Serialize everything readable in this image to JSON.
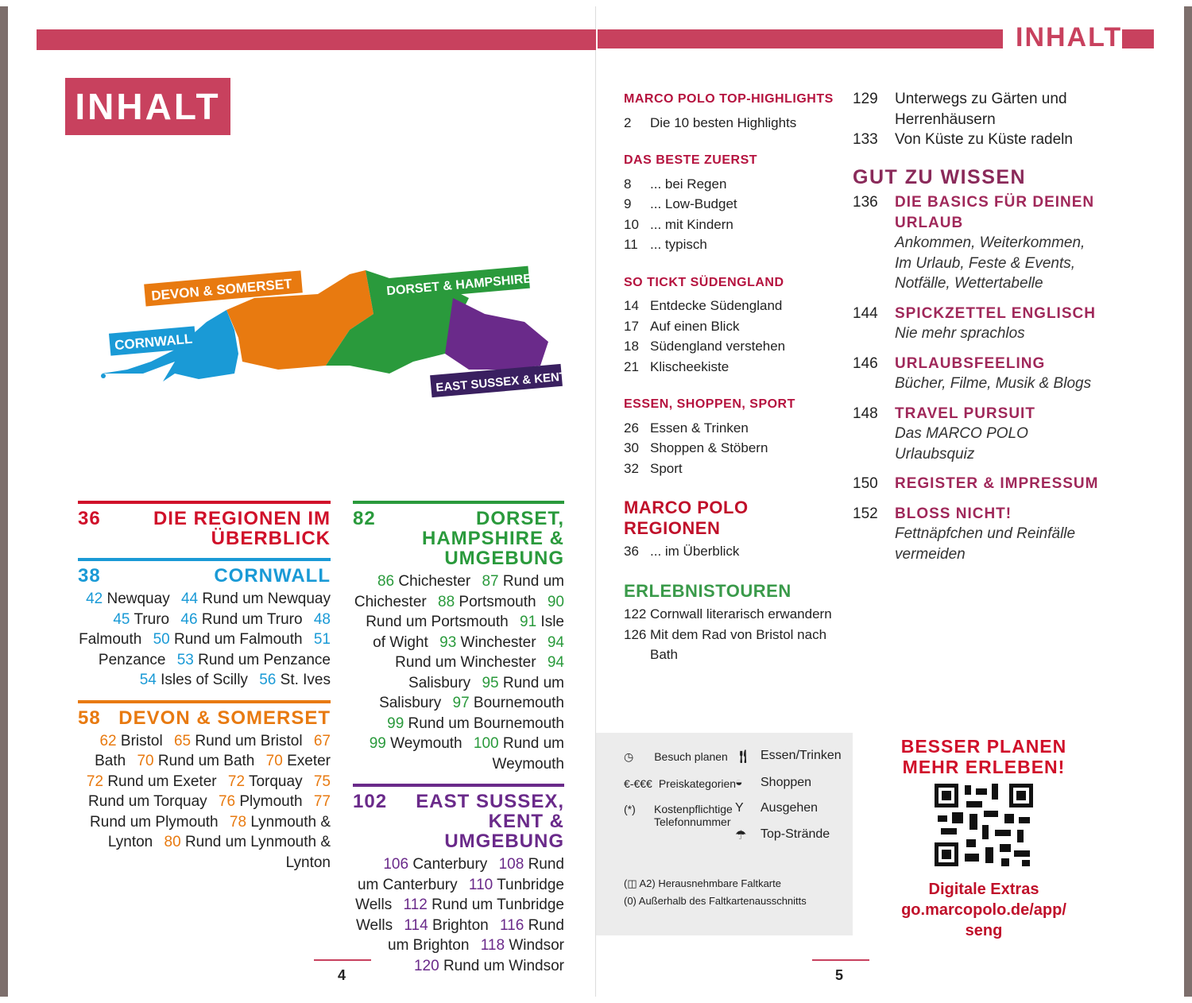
{
  "left_page": {
    "title": "INHALT",
    "map_labels": {
      "cornwall": "CORNWALL",
      "devon": "DEVON & SOMERSET",
      "dorset": "DORSET & HAMPSHIRE",
      "sussex": "EAST SUSSEX & KENT"
    },
    "regions": [
      {
        "num": "36",
        "title": "DIE REGIONEN IM ÜBERBLICK",
        "color": "#d0102a",
        "entries": []
      },
      {
        "num": "38",
        "title": "CORNWALL",
        "color": "#1a9ad6",
        "entries": [
          [
            "42",
            "Newquay"
          ],
          [
            "44",
            "Rund um Newquay"
          ],
          [
            "45",
            "Truro"
          ],
          [
            "46",
            "Rund um Truro"
          ],
          [
            "48",
            "Falmouth"
          ],
          [
            "50",
            "Rund um Falmouth"
          ],
          [
            "51",
            "Penzance"
          ],
          [
            "53",
            "Rund um Penzance"
          ],
          [
            "54",
            "Isles of Scilly"
          ],
          [
            "56",
            "St. Ives"
          ]
        ]
      },
      {
        "num": "58",
        "title": "DEVON & SOMERSET",
        "color": "#e87a10",
        "entries": [
          [
            "62",
            "Bristol"
          ],
          [
            "65",
            "Rund um Bristol"
          ],
          [
            "67",
            "Bath"
          ],
          [
            "70",
            "Rund um Bath"
          ],
          [
            "70",
            "Exeter"
          ],
          [
            "72",
            "Rund um Exeter"
          ],
          [
            "72",
            "Torquay"
          ],
          [
            "75",
            "Rund um Torquay"
          ],
          [
            "76",
            "Plymouth"
          ],
          [
            "77",
            "Rund um Plymouth"
          ],
          [
            "78",
            "Lynmouth & Lynton"
          ],
          [
            "80",
            "Rund um Lynmouth & Lynton"
          ]
        ]
      },
      {
        "num": "82",
        "title": "DORSET, HAMPSHIRE & UMGEBUNG",
        "color": "#2a9a3c",
        "entries": [
          [
            "86",
            "Chichester"
          ],
          [
            "87",
            "Rund um Chichester"
          ],
          [
            "88",
            "Portsmouth"
          ],
          [
            "90",
            "Rund um Portsmouth"
          ],
          [
            "91",
            "Isle of Wight"
          ],
          [
            "93",
            "Winchester"
          ],
          [
            "94",
            "Rund um Winchester"
          ],
          [
            "94",
            "Salisbury"
          ],
          [
            "95",
            "Rund um Salisbury"
          ],
          [
            "97",
            "Bournemouth"
          ],
          [
            "99",
            "Rund um Bournemouth"
          ],
          [
            "99",
            "Weymouth"
          ],
          [
            "100",
            "Rund um Weymouth"
          ]
        ]
      },
      {
        "num": "102",
        "title": "EAST SUSSEX, KENT & UMGEBUNG",
        "color": "#6a2a8a",
        "entries": [
          [
            "106",
            "Canterbury"
          ],
          [
            "108",
            "Rund um Canterbury"
          ],
          [
            "110",
            "Tunbridge Wells"
          ],
          [
            "112",
            "Rund um Tunbridge Wells"
          ],
          [
            "114",
            "Brighton"
          ],
          [
            "116",
            "Rund um Brighton"
          ],
          [
            "118",
            "Windsor"
          ],
          [
            "120",
            "Rund um Windsor"
          ]
        ]
      }
    ],
    "page_number": "4"
  },
  "right_page": {
    "header": "INHALT",
    "sections": [
      {
        "title": "MARCO POLO TOP-HIGHLIGHTS",
        "items": [
          [
            "2",
            "Die 10 besten Highlights"
          ]
        ]
      },
      {
        "title": "DAS BESTE ZUERST",
        "items": [
          [
            "8",
            "... bei Regen"
          ],
          [
            "9",
            "... Low-Budget"
          ],
          [
            "10",
            "... mit Kindern"
          ],
          [
            "11",
            "... typisch"
          ]
        ]
      },
      {
        "title": "SO TICKT SÜDENGLAND",
        "items": [
          [
            "14",
            "Entdecke Südengland"
          ],
          [
            "17",
            "Auf einen Blick"
          ],
          [
            "18",
            "Südengland verstehen"
          ],
          [
            "21",
            "Klischeekiste"
          ]
        ]
      },
      {
        "title": "ESSEN, SHOPPEN, SPORT",
        "items": [
          [
            "26",
            "Essen & Trinken"
          ],
          [
            "30",
            "Shoppen & Stöbern"
          ],
          [
            "32",
            "Sport"
          ]
        ]
      }
    ],
    "regionen": {
      "title": "MARCO POLO REGIONEN",
      "items": [
        [
          "36",
          "... im Überblick"
        ]
      ]
    },
    "touren": {
      "title": "ERLEBNISTOUREN",
      "items": [
        [
          "122",
          "Cornwall literarisch erwandern"
        ],
        [
          "126",
          "Mit dem Rad von Bristol nach Bath"
        ],
        [
          "129",
          "Unterwegs zu Gärten und Herrenhäusern"
        ],
        [
          "133",
          "Von Küste zu Küste radeln"
        ]
      ]
    },
    "gut_zu_wissen": {
      "title": "GUT ZU WISSEN",
      "items": [
        {
          "n": "136",
          "t": "DIE BASICS FÜR DEINEN URLAUB",
          "s": "Ankommen, Weiterkommen, Im Urlaub, Feste & Events, Notfälle, Wettertabelle"
        },
        {
          "n": "144",
          "t": "SPICKZETTEL ENGLISCH",
          "s": "Nie mehr sprachlos"
        },
        {
          "n": "146",
          "t": "URLAUBSFEELING",
          "s": "Bücher, Filme, Musik & Blogs"
        },
        {
          "n": "148",
          "t": "TRAVEL PURSUIT",
          "s": "Das MARCO POLO Urlaubsquiz"
        },
        {
          "n": "150",
          "t": "REGISTER & IMPRESSUM",
          "s": ""
        },
        {
          "n": "152",
          "t": "BLOSS NICHT!",
          "s": "Fettnäpfchen und Reinfälle vermeiden"
        }
      ]
    },
    "legend": {
      "besuch": "Besuch planen",
      "preis_sym": "€-€€€",
      "preis": "Preiskategorien",
      "stern_sym": "(*)",
      "kosten": "Kostenpflichtige Telefonnummer",
      "essen": "Essen/Trinken",
      "shoppen": "Shoppen",
      "ausgehen": "Ausgehen",
      "straende": "Top-Strände",
      "faltkarte": "(◫ A2) Herausnehmbare Faltkarte",
      "ausserhalb": "(0) Außerhalb des Faltkartenausschnitts"
    },
    "promo": {
      "line1": "BESSER PLANEN",
      "line2": "MEHR ERLEBEN!",
      "extras": "Digitale Extras",
      "url1": "go.marcopolo.de/app/",
      "url2": "seng"
    },
    "page_number": "5"
  },
  "colors": {
    "brand": "#c8415e",
    "red": "#d0102a",
    "cornwall": "#1a9ad6",
    "devon": "#e87a10",
    "dorset": "#2a9a3c",
    "sussex": "#6a2a8a"
  }
}
